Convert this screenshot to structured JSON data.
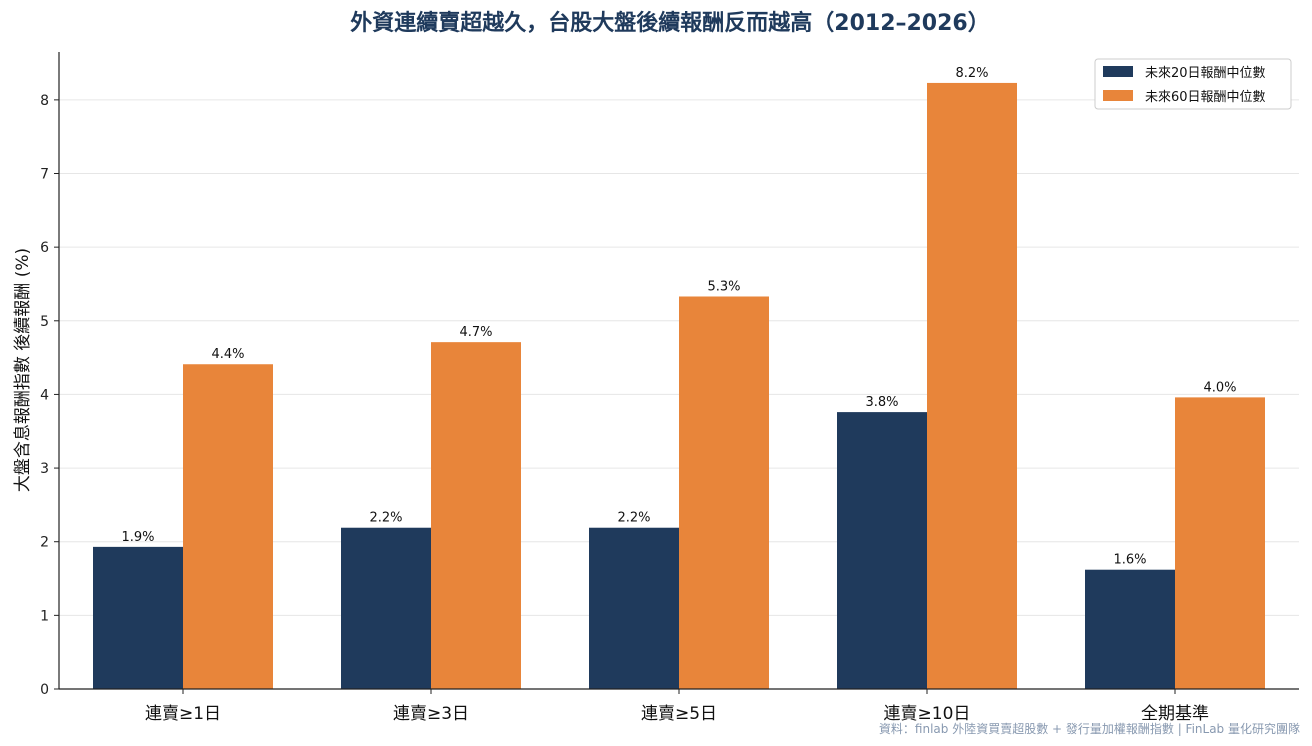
{
  "chart_data": {
    "type": "bar",
    "title": "外資連續賣超越久，台股大盤後續報酬反而越高（2012–2026）",
    "ylabel": "大盤含息報酬指數 後續報酬 (%)",
    "xlabel": "",
    "categories": [
      "連賣≥1日",
      "連賣≥3日",
      "連賣≥5日",
      "連賣≥10日",
      "全期基準"
    ],
    "series": [
      {
        "name": "未來20日報酬中位數",
        "color": "#1f3a5c",
        "values": [
          1.93,
          2.19,
          2.19,
          3.76,
          1.62
        ],
        "labels": [
          "1.9%",
          "2.2%",
          "2.2%",
          "3.8%",
          "1.6%"
        ]
      },
      {
        "name": "未來60日報酬中位數",
        "color": "#e8853a",
        "values": [
          4.41,
          4.71,
          5.33,
          8.23,
          3.96
        ],
        "labels": [
          "4.4%",
          "4.7%",
          "5.3%",
          "8.2%",
          "4.0%"
        ]
      }
    ],
    "ylim": [
      0,
      8.65
    ],
    "yticks": [
      0,
      1,
      2,
      3,
      4,
      5,
      6,
      7,
      8
    ],
    "grid": "horizontal",
    "legend_position": "top-right",
    "source": "資料：finlab 外陸資買賣超股數 + 發行量加權報酬指數 | FinLab 量化研究團隊"
  }
}
